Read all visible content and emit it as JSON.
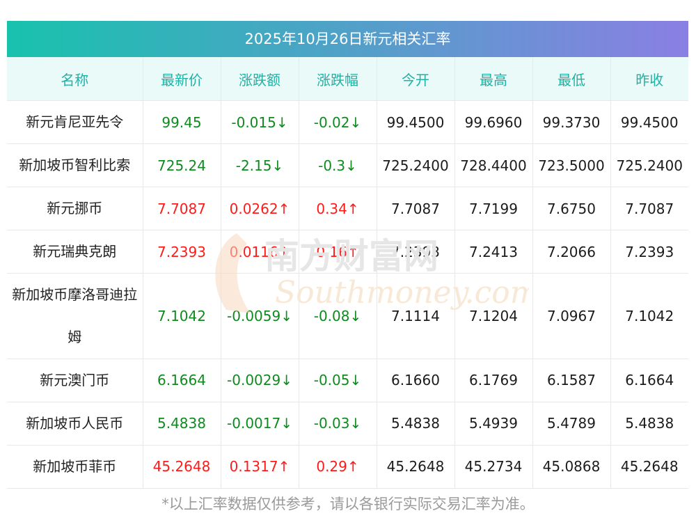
{
  "title": "2025年10月26日新元相关汇率",
  "headers": [
    "名称",
    "最新价",
    "涨跌额",
    "涨跌幅",
    "今开",
    "最高",
    "最低",
    "昨收"
  ],
  "rows": [
    {
      "name": "新元肯尼亚先令",
      "latest": "99.45",
      "change": "-0.015↓",
      "change_pct": "-0.02↓",
      "open": "99.4500",
      "high": "99.6960",
      "low": "99.3730",
      "prev_close": "99.4500",
      "trend": "down"
    },
    {
      "name": "新加坡币智利比索",
      "latest": "725.24",
      "change": "-2.15↓",
      "change_pct": "-0.3↓",
      "open": "725.2400",
      "high": "728.4400",
      "low": "723.5000",
      "prev_close": "725.2400",
      "trend": "down"
    },
    {
      "name": "新元挪币",
      "latest": "7.7087",
      "change": "0.0262↑",
      "change_pct": "0.34↑",
      "open": "7.7087",
      "high": "7.7199",
      "low": "7.6750",
      "prev_close": "7.7087",
      "trend": "up"
    },
    {
      "name": "新元瑞典克朗",
      "latest": "7.2393",
      "change": "0.0116↑",
      "change_pct": "0.16↑",
      "open": "7.2393",
      "high": "7.2413",
      "low": "7.2066",
      "prev_close": "7.2393",
      "trend": "up"
    },
    {
      "name": "新加坡币摩洛哥迪拉姆",
      "latest": "7.1042",
      "change": "-0.0059↓",
      "change_pct": "-0.08↓",
      "open": "7.1114",
      "high": "7.1204",
      "low": "7.0967",
      "prev_close": "7.1042",
      "trend": "down"
    },
    {
      "name": "新元澳门币",
      "latest": "6.1664",
      "change": "-0.0029↓",
      "change_pct": "-0.05↓",
      "open": "6.1660",
      "high": "6.1769",
      "low": "6.1587",
      "prev_close": "6.1664",
      "trend": "down"
    },
    {
      "name": "新加坡币人民币",
      "latest": "5.4838",
      "change": "-0.0017↓",
      "change_pct": "-0.03↓",
      "open": "5.4838",
      "high": "5.4939",
      "low": "5.4789",
      "prev_close": "5.4838",
      "trend": "down"
    },
    {
      "name": "新加坡币菲币",
      "latest": "45.2648",
      "change": "0.1317↑",
      "change_pct": "0.29↑",
      "open": "45.2648",
      "high": "45.2734",
      "low": "45.0868",
      "prev_close": "45.2648",
      "trend": "up"
    }
  ],
  "note": "*以上汇率数据仅供参考，请以各银行实际交易汇率为准。",
  "watermark": {
    "cn": "南方财富网",
    "en": "Southmoney.com"
  },
  "colors": {
    "up": "#ff1a1a",
    "down": "#0e8a1e",
    "header_text": "#1fb1a4",
    "gradient_start": "#18c2ad",
    "gradient_end": "#8a7fe3"
  }
}
